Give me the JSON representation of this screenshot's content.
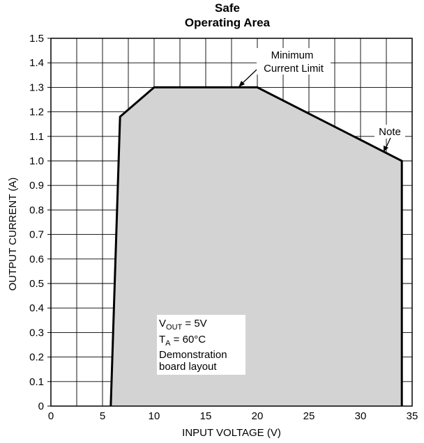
{
  "chart_data": {
    "type": "area",
    "title_lines": [
      "Safe",
      "Operating Area"
    ],
    "xlabel": "INPUT VOLTAGE (V)",
    "ylabel": "OUTPUT CURRENT (A)",
    "xlim": [
      0,
      35
    ],
    "ylim": [
      0,
      1.5
    ],
    "x_major_ticks": [
      0,
      5,
      10,
      15,
      20,
      25,
      30,
      35
    ],
    "x_tick_labels": [
      "0",
      "5",
      "10",
      "15",
      "20",
      "25",
      "30",
      "35"
    ],
    "x_grid_step": 2.5,
    "y_ticks": [
      0,
      0.1,
      0.2,
      0.3,
      0.4,
      0.5,
      0.6,
      0.7,
      0.8,
      0.9,
      1.0,
      1.1,
      1.2,
      1.3,
      1.4,
      1.5
    ],
    "y_tick_labels": [
      "0",
      "0.1",
      "0.2",
      "0.3",
      "0.4",
      "0.5",
      "0.6",
      "0.7",
      "0.8",
      "0.9",
      "1.0",
      "1.1",
      "1.2",
      "1.3",
      "1.4",
      "1.5"
    ],
    "grid": true,
    "series": [
      {
        "x": [
          5.8,
          6.7,
          10.0,
          20.0,
          34.0,
          34.0
        ],
        "y": [
          0.0,
          1.18,
          1.3,
          1.3,
          1.0,
          0.0
        ],
        "fill": "#d3d3d3",
        "stroke": "#000000"
      }
    ],
    "annotations": [
      {
        "lines": [
          "Minimum",
          "Current Limit"
        ],
        "target": [
          18.4,
          1.3
        ]
      },
      {
        "lines": [
          "Note"
        ],
        "target": [
          32.2,
          1.05
        ]
      }
    ],
    "conditions": {
      "vout": {
        "symbol": "V",
        "sub": "OUT",
        "rest": " = 5V"
      },
      "ta": {
        "symbol": "T",
        "sub": "A",
        "rest": " = 60°C"
      },
      "line3": "Demonstration",
      "line4": "board layout"
    }
  }
}
